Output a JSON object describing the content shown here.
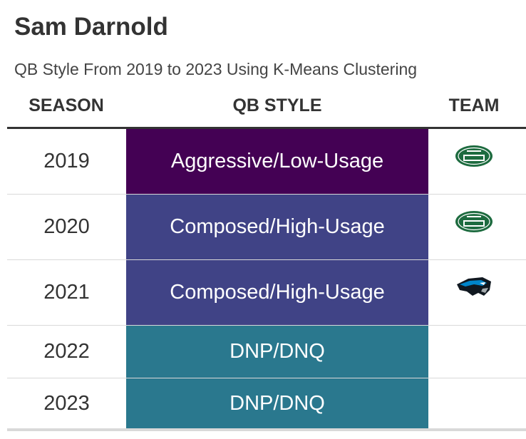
{
  "title": "Sam Darnold",
  "subtitle": "QB Style From 2019 to 2023 Using K-Means Clustering",
  "columns": {
    "season": "SEASON",
    "qb_style": "QB STYLE",
    "team": "TEAM"
  },
  "colors": {
    "aggressive_low_usage": "#440154",
    "composed_high_usage": "#404386",
    "dnp_dnq": "#2a788e",
    "jets_green": "#1d6b3f",
    "panthers_blue": "#0085ca"
  },
  "chart_data": {
    "type": "table",
    "title": "Sam Darnold",
    "subtitle": "QB Style From 2019 to 2023 Using K-Means Clustering",
    "headers": [
      "SEASON",
      "QB STYLE",
      "TEAM"
    ],
    "rows": [
      {
        "season": "2019",
        "qb_style": "Aggressive/Low-Usage",
        "team_logo": "jets-logo-icon",
        "color": "#440154"
      },
      {
        "season": "2020",
        "qb_style": "Composed/High-Usage",
        "team_logo": "jets-logo-icon",
        "color": "#404386"
      },
      {
        "season": "2021",
        "qb_style": "Composed/High-Usage",
        "team_logo": "panthers-logo-icon",
        "color": "#404386"
      },
      {
        "season": "2022",
        "qb_style": "DNP/DNQ",
        "team_logo": "",
        "color": "#2a788e"
      },
      {
        "season": "2023",
        "qb_style": "DNP/DNQ",
        "team_logo": "",
        "color": "#2a788e"
      }
    ]
  }
}
